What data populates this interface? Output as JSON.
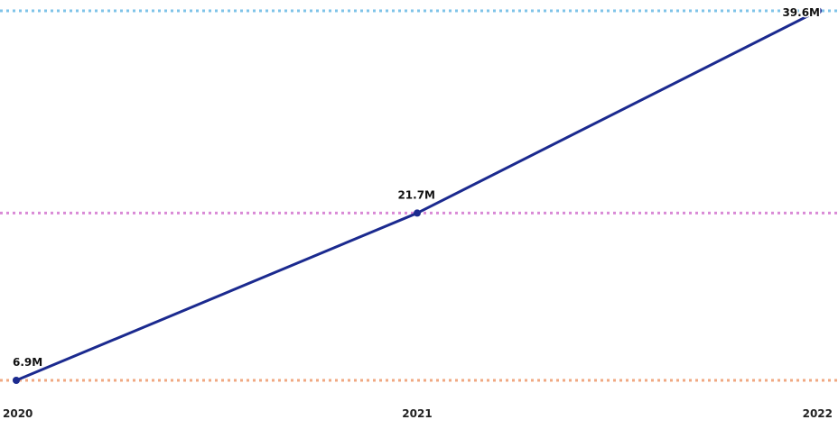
{
  "chart_data": {
    "type": "line",
    "title": "",
    "xlabel": "",
    "ylabel": "",
    "categories": [
      "2020",
      "2021",
      "2022"
    ],
    "series": [
      {
        "values": [
          6.9,
          21.7,
          39.6
        ],
        "data_labels": [
          "6.9M",
          "21.7M",
          "39.6M"
        ],
        "color": "#1b2a8f"
      }
    ],
    "reference_lines": [
      {
        "value": 39.6,
        "color": "#7ec3e8",
        "style": "dotted"
      },
      {
        "value": 21.7,
        "color": "#d98ad6",
        "style": "dotted"
      },
      {
        "value": 6.9,
        "color": "#f0a882",
        "style": "dotted"
      }
    ],
    "ylim": [
      6.9,
      39.6
    ],
    "grid": false,
    "legend": "none",
    "unit": "M"
  }
}
